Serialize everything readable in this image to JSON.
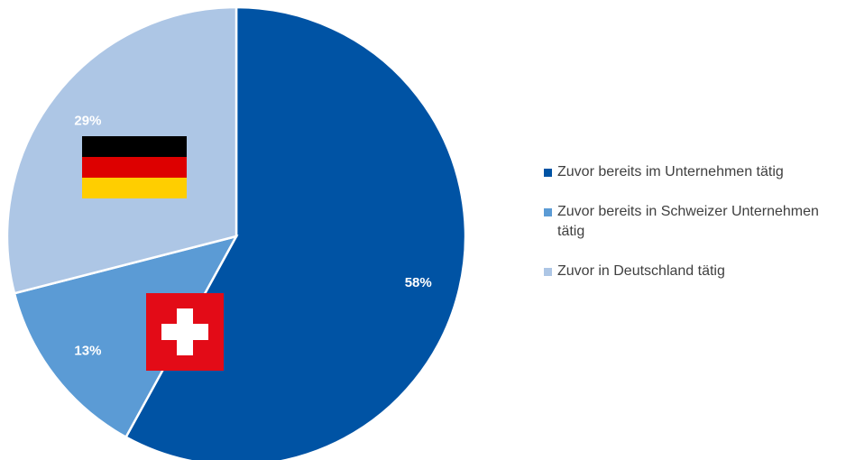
{
  "chart_data": {
    "type": "pie",
    "categories": [
      "Zuvor bereits im Unternehmen tätig",
      "Zuvor bereits in Schweizer Unternehmen tätig",
      "Zuvor in Deutschland tätig"
    ],
    "values": [
      58,
      13,
      29
    ],
    "value_labels": [
      "58%",
      "13%",
      "29%"
    ],
    "colors": [
      "#0053a4",
      "#5b9bd5",
      "#adc6e5"
    ],
    "legend": "right"
  }
}
